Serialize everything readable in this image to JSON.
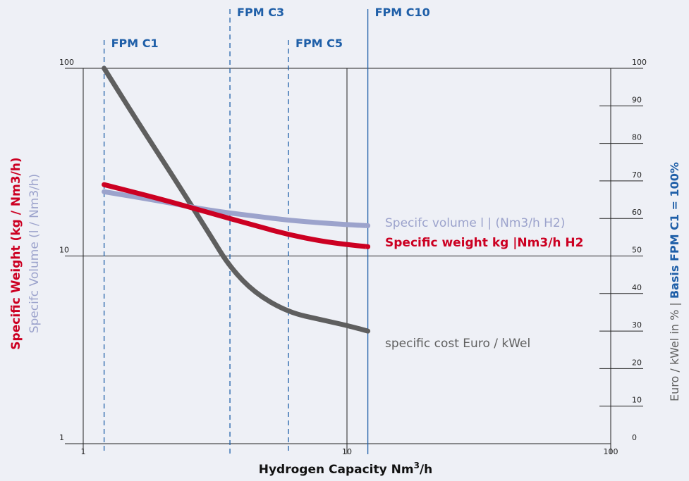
{
  "chart_data": {
    "type": "line",
    "x_scale": "log",
    "xlim": [
      1,
      100
    ],
    "xticks": [
      "1",
      "10",
      "100"
    ],
    "xlabel_main": "Hydrogen Capacity Nm",
    "xlabel_sup": "3",
    "xlabel_tail": "/h",
    "y_left_scale": "log",
    "y_left_lim": [
      1,
      100
    ],
    "y_left_ticks": [
      "1",
      "10",
      "100"
    ],
    "ylabel_left_weight": "Specific Weight (kg / Nm3/h)",
    "ylabel_left_volume": "Specifc Volume (l / Nm3/h)",
    "y_right_lim": [
      0,
      100
    ],
    "y_right_ticks": [
      "0",
      "10",
      "20",
      "30",
      "40",
      "50",
      "60",
      "70",
      "80",
      "90",
      "100"
    ],
    "ylabel_right_grey": "Euro / kWel in % | ",
    "ylabel_right_blue": "Basis FPM C1 = 100%",
    "markers": [
      {
        "label": "FPM C1",
        "x": 1.2
      },
      {
        "label": "FPM C3",
        "x": 3.6
      },
      {
        "label": "FPM C5",
        "x": 6.0
      },
      {
        "label": "FPM C10",
        "x": 12.0
      }
    ],
    "series": [
      {
        "name": "specific cost Euro / kWel",
        "axis": "right",
        "color": "#5f5f5f",
        "x": [
          1.2,
          1.6,
          2.2,
          3.0,
          3.6,
          4.5,
          6.0,
          8.0,
          10.0,
          12.0
        ],
        "y": [
          100,
          86,
          71,
          56,
          47,
          40,
          35,
          33,
          31.5,
          30
        ]
      },
      {
        "name": "Specific weight kg |Nm3/h H2",
        "axis": "left",
        "color": "#cc0022",
        "x": [
          1.2,
          2.0,
          3.0,
          4.5,
          6.0,
          8.0,
          10.0,
          12.0
        ],
        "y": [
          24,
          20,
          17,
          14.5,
          13,
          12,
          11.5,
          11.2
        ]
      },
      {
        "name": "Specifc volume l | (Nm3/h H2)",
        "axis": "left",
        "color": "#9ca3cc",
        "x": [
          1.2,
          2.0,
          3.0,
          4.5,
          6.0,
          8.0,
          10.0,
          12.0
        ],
        "y": [
          22,
          19.5,
          17.5,
          16.3,
          15.5,
          15,
          14.7,
          14.5
        ]
      }
    ],
    "colors": {
      "axis": "#222222",
      "marker": "#1f5fa8",
      "cost": "#5f5f5f",
      "weight": "#cc0022",
      "volume": "#9ca3cc",
      "background": "#eef0f6"
    }
  }
}
